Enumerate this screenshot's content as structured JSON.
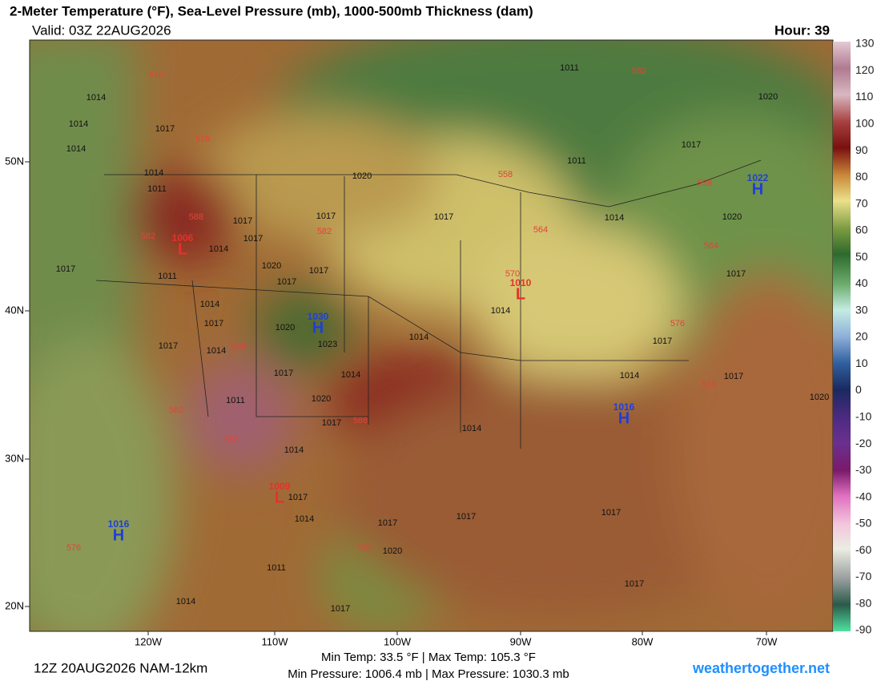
{
  "header": {
    "title": "2-Meter Temperature (°F), Sea-Level Pressure (mb), 1000-500mb Thickness (dam)",
    "valid": "Valid: 03Z 22AUG2026",
    "hour": "Hour: 39"
  },
  "map": {
    "lat_labels": [
      "50N",
      "40N",
      "30N",
      "20N"
    ],
    "lon_labels": [
      "120W",
      "110W",
      "100W",
      "90W",
      "80W",
      "70W"
    ],
    "highs": [
      {
        "pressure": 1016,
        "symbol": "H"
      },
      {
        "pressure": 1030,
        "symbol": "H"
      },
      {
        "pressure": 1016,
        "symbol": "H"
      },
      {
        "pressure": 1022,
        "symbol": "H"
      }
    ],
    "lows": [
      {
        "pressure": 1006,
        "symbol": "L"
      },
      {
        "pressure": 1010,
        "symbol": "L"
      },
      {
        "pressure": 1009,
        "symbol": "L"
      }
    ],
    "isobar_labels": [
      1014,
      1014,
      1014,
      1017,
      1014,
      1011,
      1017,
      1011,
      1017,
      1017,
      1014,
      1020,
      1017,
      1017,
      1014,
      1017,
      1014,
      1017,
      1020,
      1017,
      1020,
      1023,
      1017,
      1014,
      1011,
      1020,
      1017,
      1014,
      1017,
      1014,
      1017,
      1020,
      1011,
      1014,
      1017,
      1014,
      1014,
      1017,
      1014,
      1017,
      1011,
      1011,
      1017,
      1014,
      1020,
      1017,
      1017,
      1014,
      1017,
      1020,
      1017,
      1017,
      1020
    ],
    "thickness_labels": [
      570,
      576,
      552,
      558,
      564,
      570,
      576,
      582,
      588,
      582,
      588,
      588,
      588,
      582,
      576,
      576,
      582,
      558,
      564
    ]
  },
  "colorbar": {
    "ticks": [
      130,
      120,
      110,
      100,
      90,
      80,
      70,
      60,
      50,
      40,
      30,
      20,
      10,
      0,
      -10,
      -20,
      -30,
      -40,
      -50,
      -60,
      -70,
      -80,
      -90
    ]
  },
  "footer": {
    "run": "12Z 20AUG2026 NAM-12km",
    "temp_range": "Min Temp:  33.5 °F | Max Temp: 105.3 °F",
    "pressure_range": "Min Pressure: 1006.4 mb | Max Pressure: 1030.3 mb",
    "site": "weathertogether.net"
  }
}
